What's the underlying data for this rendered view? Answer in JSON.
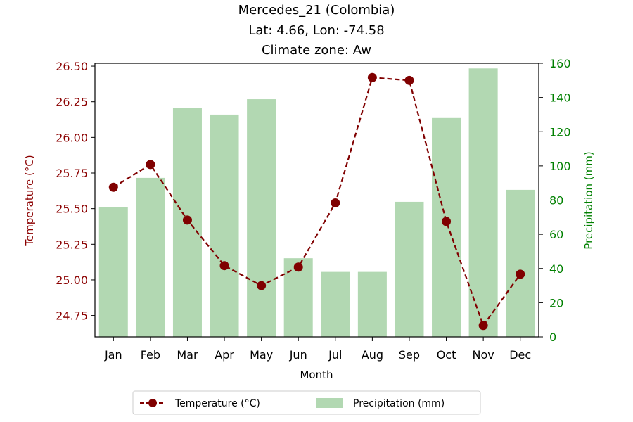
{
  "chart_data": {
    "type": "bar",
    "title_lines": [
      "Mercedes_21 (Colombia)",
      "Lat: 4.66, Lon: -74.58",
      "Climate zone: Aw"
    ],
    "xlabel": "Month",
    "ylabel_left": "Temperature (°C)",
    "ylabel_right": "Precipitation (mm)",
    "categories": [
      "Jan",
      "Feb",
      "Mar",
      "Apr",
      "May",
      "Jun",
      "Jul",
      "Aug",
      "Sep",
      "Oct",
      "Nov",
      "Dec"
    ],
    "left_axis": {
      "min": 24.6,
      "max": 26.52,
      "ticks": [
        24.75,
        25.0,
        25.25,
        25.5,
        25.75,
        26.0,
        26.25,
        26.5
      ],
      "tick_labels": [
        "24.75",
        "25.00",
        "25.25",
        "25.50",
        "25.75",
        "26.00",
        "26.25",
        "26.50"
      ]
    },
    "right_axis": {
      "min": 0,
      "max": 160,
      "ticks": [
        0,
        20,
        40,
        60,
        80,
        100,
        120,
        140,
        160
      ],
      "tick_labels": [
        "0",
        "20",
        "40",
        "60",
        "80",
        "100",
        "120",
        "140",
        "160"
      ]
    },
    "series": [
      {
        "name": "Temperature (°C)",
        "kind": "line",
        "axis": "left",
        "color": "#800000",
        "values": [
          25.65,
          25.81,
          25.42,
          25.1,
          24.96,
          25.09,
          25.54,
          26.42,
          26.4,
          25.41,
          24.68,
          25.04
        ]
      },
      {
        "name": "Precipitation (mm)",
        "kind": "bar",
        "axis": "right",
        "color": "#b2d8b2",
        "values": [
          76,
          93,
          134,
          130,
          139,
          46,
          38,
          38,
          79,
          128,
          157,
          86
        ]
      }
    ],
    "legend": {
      "placement": "bottom-center"
    },
    "colors": {
      "left_axis": "#8b0000",
      "right_axis": "#008000",
      "text": "#000000"
    },
    "grid": false
  }
}
